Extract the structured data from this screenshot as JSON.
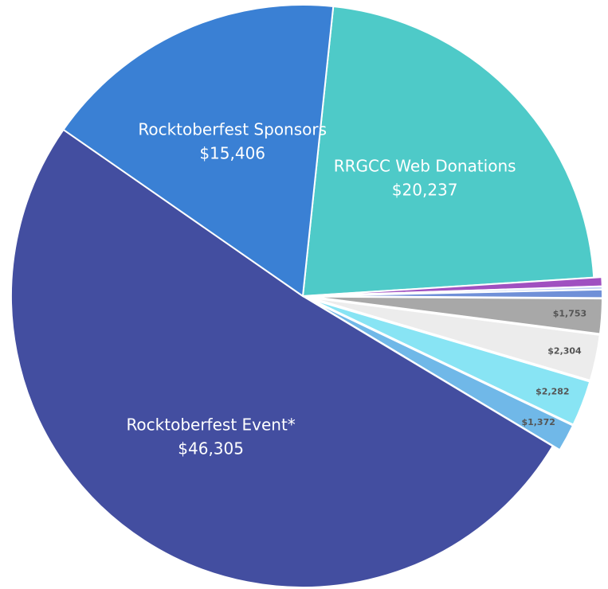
{
  "chart_data": {
    "type": "pie",
    "categories": [
      "RRGCC Web Donations",
      null,
      null,
      null,
      null,
      null,
      null,
      null,
      "Rocktoberfest Event*",
      "Rocktoberfest Sponsors"
    ],
    "values": [
      20237,
      450,
      150,
      420,
      1753,
      2304,
      2282,
      1372,
      46305,
      15406
    ],
    "value_labels": [
      "$20,237",
      null,
      null,
      null,
      "$1,753",
      "$2,304",
      "$2,282",
      "$1,372",
      "$46,305",
      "$15,406"
    ],
    "colors": [
      "#4ecac8",
      "#a050c0",
      "#c0d0f4",
      "#7090d8",
      "#a8a8a8",
      "#ececec",
      "#88e4f4",
      "#70b8e8",
      "#434ea0",
      "#3a80d4"
    ]
  }
}
